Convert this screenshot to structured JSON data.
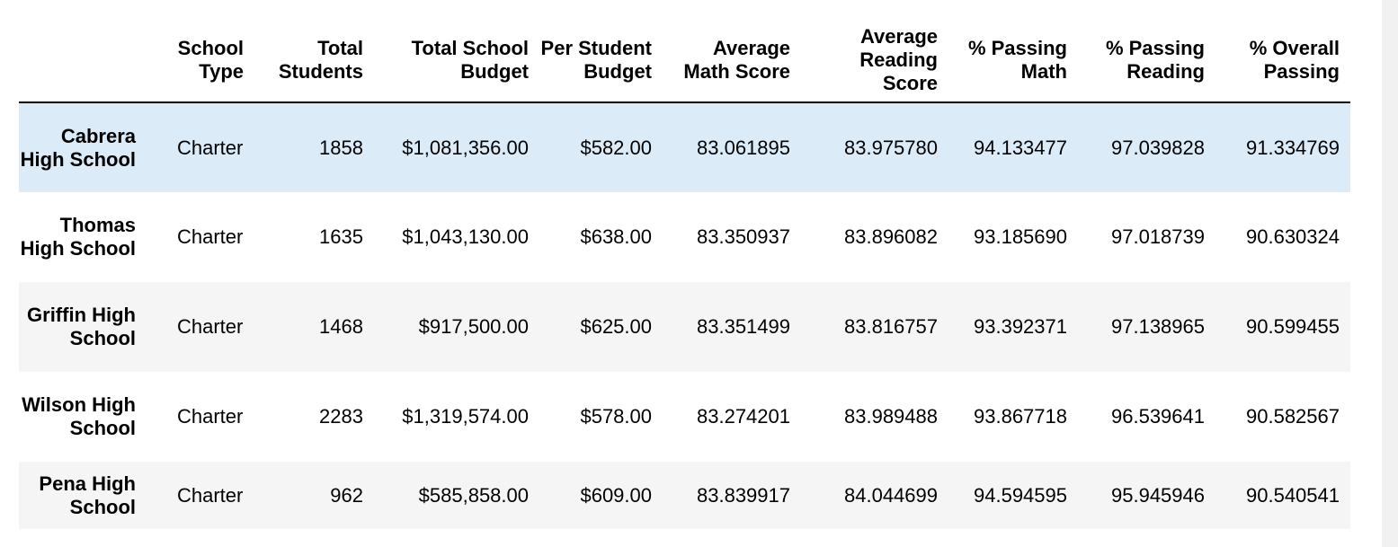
{
  "table": {
    "headers": [
      "",
      "School Type",
      "Total Students",
      "Total School Budget",
      "Per Student Budget",
      "Average Math Score",
      "Average Reading Score",
      "% Passing Math",
      "% Passing Reading",
      "% Overall Passing"
    ],
    "rows": [
      {
        "school": "Cabrera High School",
        "type": "Charter",
        "total_students": "1858",
        "total_budget": "$1,081,356.00",
        "per_student_budget": "$582.00",
        "avg_math": "83.061895",
        "avg_reading": "83.975780",
        "pct_math": "94.133477",
        "pct_reading": "97.039828",
        "pct_overall": "91.334769"
      },
      {
        "school": "Thomas High School",
        "type": "Charter",
        "total_students": "1635",
        "total_budget": "$1,043,130.00",
        "per_student_budget": "$638.00",
        "avg_math": "83.350937",
        "avg_reading": "83.896082",
        "pct_math": "93.185690",
        "pct_reading": "97.018739",
        "pct_overall": "90.630324"
      },
      {
        "school": "Griffin High School",
        "type": "Charter",
        "total_students": "1468",
        "total_budget": "$917,500.00",
        "per_student_budget": "$625.00",
        "avg_math": "83.351499",
        "avg_reading": "83.816757",
        "pct_math": "93.392371",
        "pct_reading": "97.138965",
        "pct_overall": "90.599455"
      },
      {
        "school": "Wilson High School",
        "type": "Charter",
        "total_students": "2283",
        "total_budget": "$1,319,574.00",
        "per_student_budget": "$578.00",
        "avg_math": "83.274201",
        "avg_reading": "83.989488",
        "pct_math": "93.867718",
        "pct_reading": "96.539641",
        "pct_overall": "90.582567"
      },
      {
        "school": "Pena High School",
        "type": "Charter",
        "total_students": "962",
        "total_budget": "$585,858.00",
        "per_student_budget": "$609.00",
        "avg_math": "83.839917",
        "avg_reading": "84.044699",
        "pct_math": "94.594595",
        "pct_reading": "95.945946",
        "pct_overall": "90.540541"
      }
    ]
  },
  "colors": {
    "hover_row": "#dbebf8",
    "striped_row": "#f5f5f5",
    "plain_row": "#ffffff",
    "header_rule": "#000000"
  }
}
